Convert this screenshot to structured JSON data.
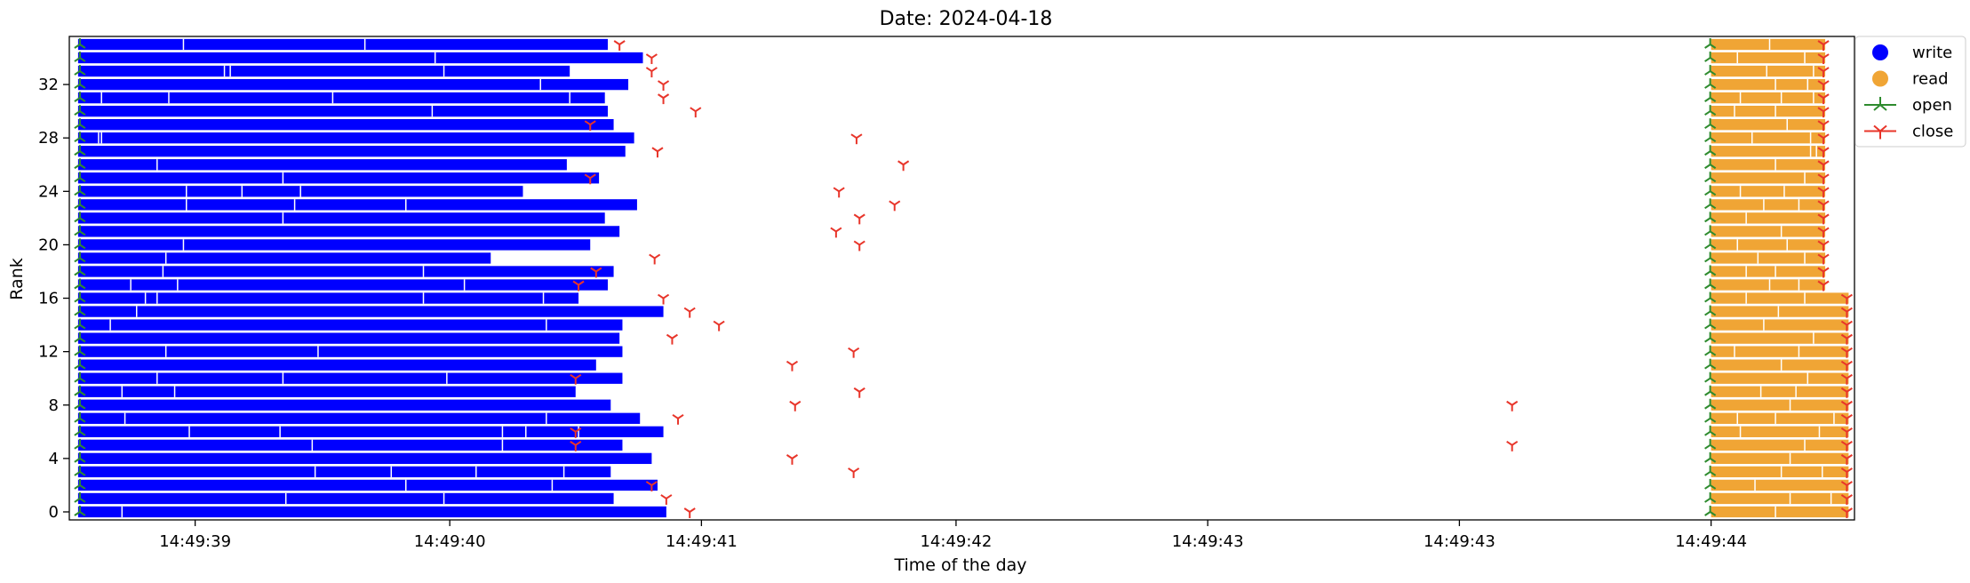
{
  "chart_data": {
    "type": "timeline",
    "title": "Date: 2024-04-18",
    "xlabel": "Time of the day",
    "ylabel": "Rank",
    "xlim": [
      38.27,
      44.37
    ],
    "ylim": [
      -0.6,
      35.6
    ],
    "x_ticks": [
      {
        "value": 38.7,
        "label": "14:49:39"
      },
      {
        "value": 39.57,
        "label": "14:49:40"
      },
      {
        "value": 40.43,
        "label": "14:49:41"
      },
      {
        "value": 41.3,
        "label": "14:49:42"
      },
      {
        "value": 42.16,
        "label": "14:49:43"
      },
      {
        "value": 43.02,
        "label": "14:49:43"
      },
      {
        "value": 43.88,
        "label": "14:49:44"
      }
    ],
    "y_ticks": [
      0,
      4,
      8,
      12,
      16,
      20,
      24,
      28,
      32
    ],
    "legend": {
      "position": "top-right",
      "entries": [
        {
          "name": "write",
          "color": "#0000ff",
          "marker": "circle"
        },
        {
          "name": "read",
          "color": "#f0a535",
          "marker": "circle"
        },
        {
          "name": "open",
          "color": "#2e8b2e",
          "marker": "tri_up"
        },
        {
          "name": "close",
          "color": "#e8352a",
          "marker": "tri_down"
        }
      ]
    },
    "colors": {
      "write": "#0000ff",
      "read": "#f0a535",
      "open": "#2e8b2e",
      "close": "#e8352a"
    },
    "write_start": 38.3,
    "read_start": 43.88,
    "write_end": [
      40.31,
      40.13,
      40.28,
      40.12,
      40.26,
      40.16,
      40.3,
      40.22,
      40.12,
      40.0,
      40.16,
      40.07,
      40.16,
      40.15,
      40.16,
      40.3,
      40.01,
      40.11,
      40.13,
      39.71,
      40.05,
      40.15,
      40.1,
      40.21,
      39.82,
      40.08,
      39.97,
      40.17,
      40.2,
      40.13,
      40.11,
      40.1,
      40.18,
      39.98,
      40.23,
      40.11
    ],
    "write_splits": [
      [
        38.45
      ],
      [
        39.01,
        39.55
      ],
      [
        39.42,
        39.92
      ],
      [
        39.11,
        39.37,
        39.66,
        39.96
      ],
      [],
      [
        39.1,
        39.75
      ],
      [
        38.68,
        38.99,
        39.75,
        39.83,
        40.01
      ],
      [
        38.46,
        39.9
      ],
      [],
      [
        38.45,
        38.63
      ],
      [
        38.57,
        39.0,
        39.56
      ],
      [],
      [
        38.6,
        39.12
      ],
      [],
      [
        38.41,
        39.9
      ],
      [
        38.5
      ],
      [
        38.53,
        38.57,
        39.48,
        39.89
      ],
      [
        38.48,
        38.64,
        39.62
      ],
      [
        38.59,
        39.48
      ],
      [
        38.6
      ],
      [
        38.66
      ],
      [],
      [
        39.0
      ],
      [
        38.67,
        39.04,
        39.42
      ],
      [
        38.67,
        38.86,
        39.06
      ],
      [
        39.0
      ],
      [
        38.57
      ],
      [],
      [
        38.37,
        38.38
      ],
      [],
      [
        39.51
      ],
      [
        38.38,
        38.61,
        39.17,
        39.98
      ],
      [
        39.88
      ],
      [
        38.8,
        38.82,
        39.55
      ],
      [
        39.52
      ],
      [
        38.66,
        39.28
      ]
    ],
    "write_close": [
      40.39,
      40.31,
      40.26,
      40.95,
      40.74,
      40.0,
      40.0,
      40.35,
      40.75,
      40.97,
      40.0,
      40.74,
      40.95,
      40.33,
      40.49,
      40.39,
      40.3,
      40.01,
      40.07,
      40.27,
      40.97,
      40.89,
      40.97,
      41.09,
      40.9,
      40.05,
      41.12,
      40.28,
      40.96,
      40.05,
      40.41,
      40.3,
      40.3,
      40.26,
      40.26,
      40.15
    ],
    "extra_close": [
      {
        "x": 43.2,
        "y": 5
      },
      {
        "x": 43.2,
        "y": 8
      }
    ],
    "read_end": [
      44.35,
      44.35,
      44.35,
      44.35,
      44.35,
      44.35,
      44.35,
      44.35,
      44.35,
      44.35,
      44.35,
      44.35,
      44.35,
      44.35,
      44.35,
      44.35,
      44.35,
      44.27,
      44.27,
      44.27,
      44.27,
      44.27,
      44.27,
      44.27,
      44.27,
      44.27,
      44.27,
      44.27,
      44.27,
      44.27,
      44.27,
      44.27,
      44.27,
      44.27,
      44.27,
      44.27
    ],
    "read_splits": [
      [
        44.1
      ],
      [
        44.15,
        44.29
      ],
      [
        44.03
      ],
      [
        44.12,
        44.26
      ],
      [
        44.15
      ],
      [
        44.2
      ],
      [
        43.98,
        44.25
      ],
      [
        43.97,
        44.1,
        44.3
      ],
      [
        44.15
      ],
      [
        44.05,
        44.17
      ],
      [
        44.21
      ],
      [
        44.12
      ],
      [
        43.96,
        44.18
      ],
      [
        44.23
      ],
      [
        44.06
      ],
      [
        44.11
      ],
      [
        44.0,
        44.2
      ],
      [
        44.08,
        44.18
      ],
      [
        44.0,
        44.1
      ],
      [
        44.04,
        44.2
      ],
      [
        43.97,
        44.14
      ],
      [
        44.12
      ],
      [
        44.0
      ],
      [
        44.06,
        44.18
      ],
      [
        43.98,
        44.13
      ],
      [
        44.2
      ],
      [
        44.1
      ],
      [
        44.22,
        44.24
      ],
      [
        44.02,
        44.22
      ],
      [
        44.14
      ],
      [
        43.96,
        44.1
      ],
      [
        43.98,
        44.12,
        44.23
      ],
      [
        44.1,
        44.21
      ],
      [
        44.07,
        44.23
      ],
      [
        43.97,
        44.2
      ],
      [
        44.08
      ]
    ]
  }
}
